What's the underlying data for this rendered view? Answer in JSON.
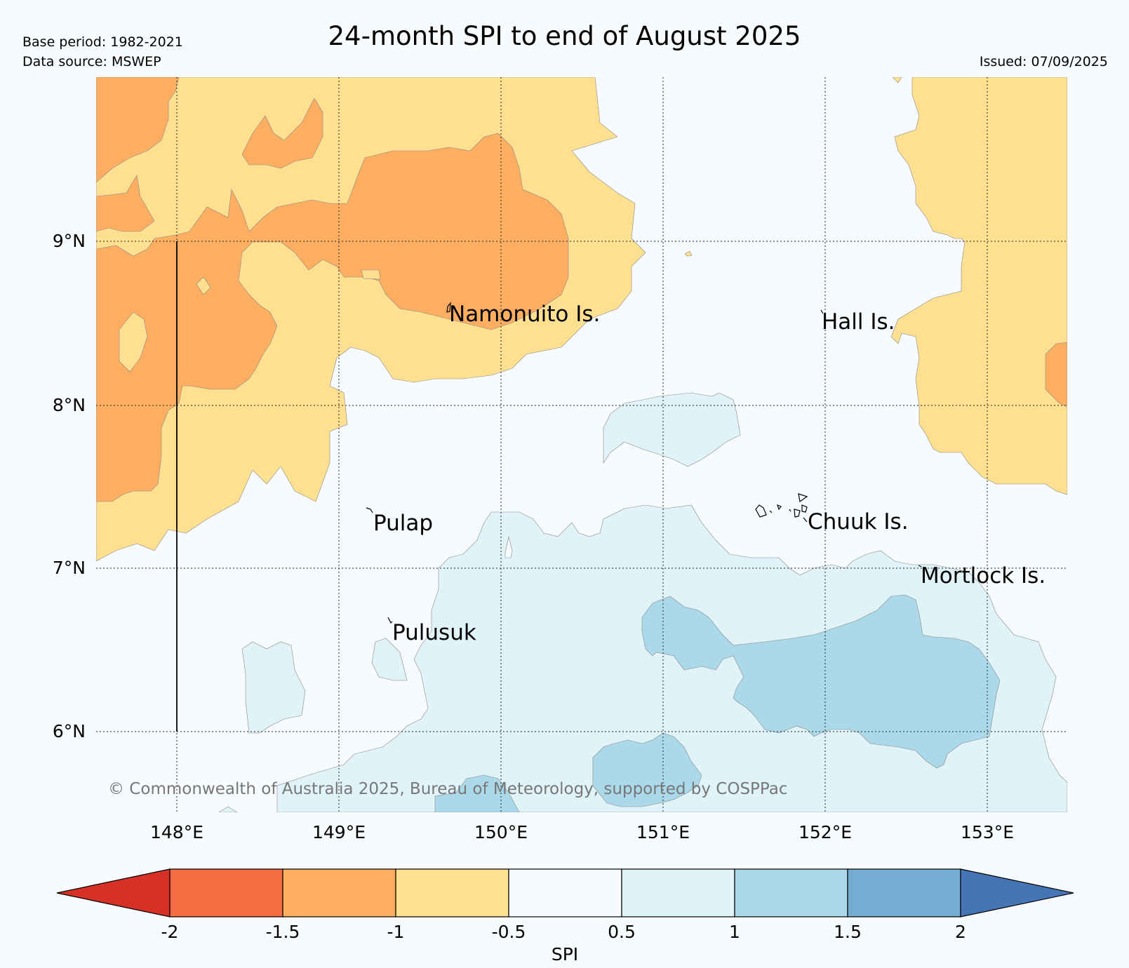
{
  "header": {
    "title": "24-month SPI to end of August 2025",
    "base_period": "Base period: 1982-2021",
    "data_source": "Data source: MSWEP",
    "issued": "Issued: 07/09/2025"
  },
  "map": {
    "lat_labels": [
      "9°N",
      "8°N",
      "7°N",
      "6°N"
    ],
    "lon_labels": [
      "148°E",
      "149°E",
      "150°E",
      "151°E",
      "152°E",
      "153°E"
    ],
    "places": [
      {
        "name": "Namonuito Is."
      },
      {
        "name": "Hall Is."
      },
      {
        "name": "Pulap"
      },
      {
        "name": "Chuuk Is."
      },
      {
        "name": "Mortlock Is."
      },
      {
        "name": "Pulusuk"
      }
    ],
    "copyright": "© Commonwealth of Australia 2025, Bureau of Meteorology, supported by COSPPac"
  },
  "colorbar": {
    "label": "SPI",
    "ticks": [
      "-2",
      "-1.5",
      "-1",
      "-0.5",
      "0.5",
      "1",
      "1.5",
      "2"
    ],
    "colors": {
      "below_-2": "#d73027",
      "-2_-1.5": "#f46d43",
      "-1.5_-1": "#fdae61",
      "-1_-0.5": "#fee090",
      "-0.5_0.5": "#f7fbfd",
      "0.5_1": "#e0f3f8",
      "1_1.5": "#abd9e9",
      "1.5_2": "#74add1",
      "above_2": "#4575b4"
    }
  }
}
